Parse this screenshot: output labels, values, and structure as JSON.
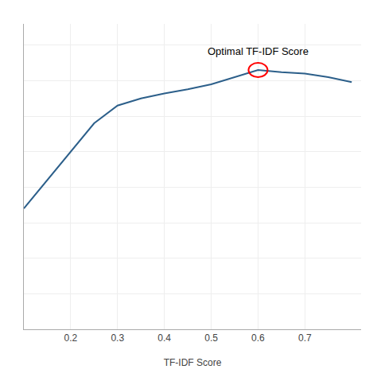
{
  "chart_data": {
    "type": "line",
    "x": [
      0.1,
      0.15,
      0.2,
      0.25,
      0.3,
      0.35,
      0.4,
      0.45,
      0.5,
      0.55,
      0.6,
      0.65,
      0.7,
      0.75,
      0.8
    ],
    "values": [
      0.72,
      0.76,
      0.8,
      0.84,
      0.865,
      0.875,
      0.882,
      0.888,
      0.895,
      0.905,
      0.915,
      0.912,
      0.91,
      0.905,
      0.898
    ],
    "color": "#2c5f8a",
    "xlabel": "TF-IDF Score",
    "xlim": [
      0.1,
      0.82
    ],
    "xticks": [
      0.2,
      0.3,
      0.4,
      0.5,
      0.6,
      0.7
    ],
    "ylim": [
      0.55,
      0.98
    ],
    "yticks": [
      0.55,
      0.6,
      0.65,
      0.7,
      0.75,
      0.8,
      0.85,
      0.9,
      0.95
    ],
    "grid": true,
    "tick_labels": "x",
    "annotations": [
      {
        "text": "Optimal TF-IDF Score",
        "x": 0.6,
        "y": 0.915,
        "color": "red"
      }
    ]
  }
}
